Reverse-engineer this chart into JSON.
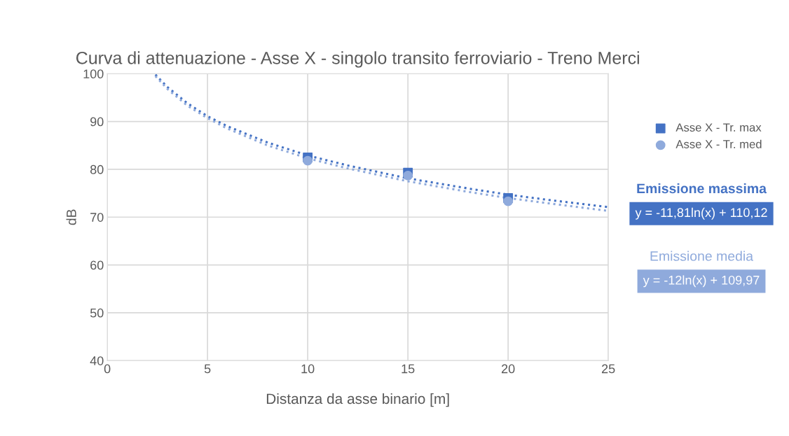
{
  "chart_data": {
    "type": "scatter",
    "title": "Curva di attenuazione - Asse X - singolo transito ferroviario - Treno Merci",
    "xlabel": "Distanza da asse binario [m]",
    "ylabel": "dB",
    "xlim": [
      0,
      25
    ],
    "xticks": [
      0,
      5,
      10,
      15,
      20,
      25
    ],
    "ylim": [
      40,
      100
    ],
    "yticks": [
      40,
      50,
      60,
      70,
      80,
      90,
      100
    ],
    "grid": true,
    "legend": "right",
    "series": [
      {
        "name": "Asse X - Tr. max",
        "color": "#4472c4",
        "marker": "square",
        "x": [
          10,
          15,
          20
        ],
        "values": [
          82.5,
          79.3,
          74.0
        ]
      },
      {
        "name": "Asse X - Tr. med",
        "color": "#8faadc",
        "marker": "circle",
        "x": [
          10,
          15,
          20
        ],
        "values": [
          81.8,
          78.7,
          73.3
        ]
      },
      {
        "type": "line",
        "color": "#4472c4",
        "line_style": "dotted",
        "marker": "none",
        "x": [
          2.4,
          3,
          4,
          5,
          6,
          8,
          10,
          12,
          15,
          18,
          20,
          22,
          25
        ],
        "values": [
          99.8,
          97.2,
          93.8,
          91.1,
          89.0,
          85.6,
          82.9,
          80.8,
          78.1,
          76.0,
          74.7,
          73.6,
          72.1
        ]
      },
      {
        "type": "line",
        "color": "#8faadc",
        "line_style": "dotted",
        "marker": "none",
        "x": [
          2.4,
          3,
          4,
          5,
          6,
          8,
          10,
          12,
          15,
          18,
          20,
          22,
          25
        ],
        "values": [
          99.5,
          96.8,
          93.3,
          90.7,
          88.5,
          85.0,
          82.3,
          80.2,
          77.5,
          75.3,
          74.0,
          72.9,
          71.3
        ]
      }
    ],
    "annotations": [
      "Emissione massima",
      "y = -11,81ln(x) + 110,12",
      "Emissione media",
      "y = -12ln(x) + 109,97"
    ]
  }
}
